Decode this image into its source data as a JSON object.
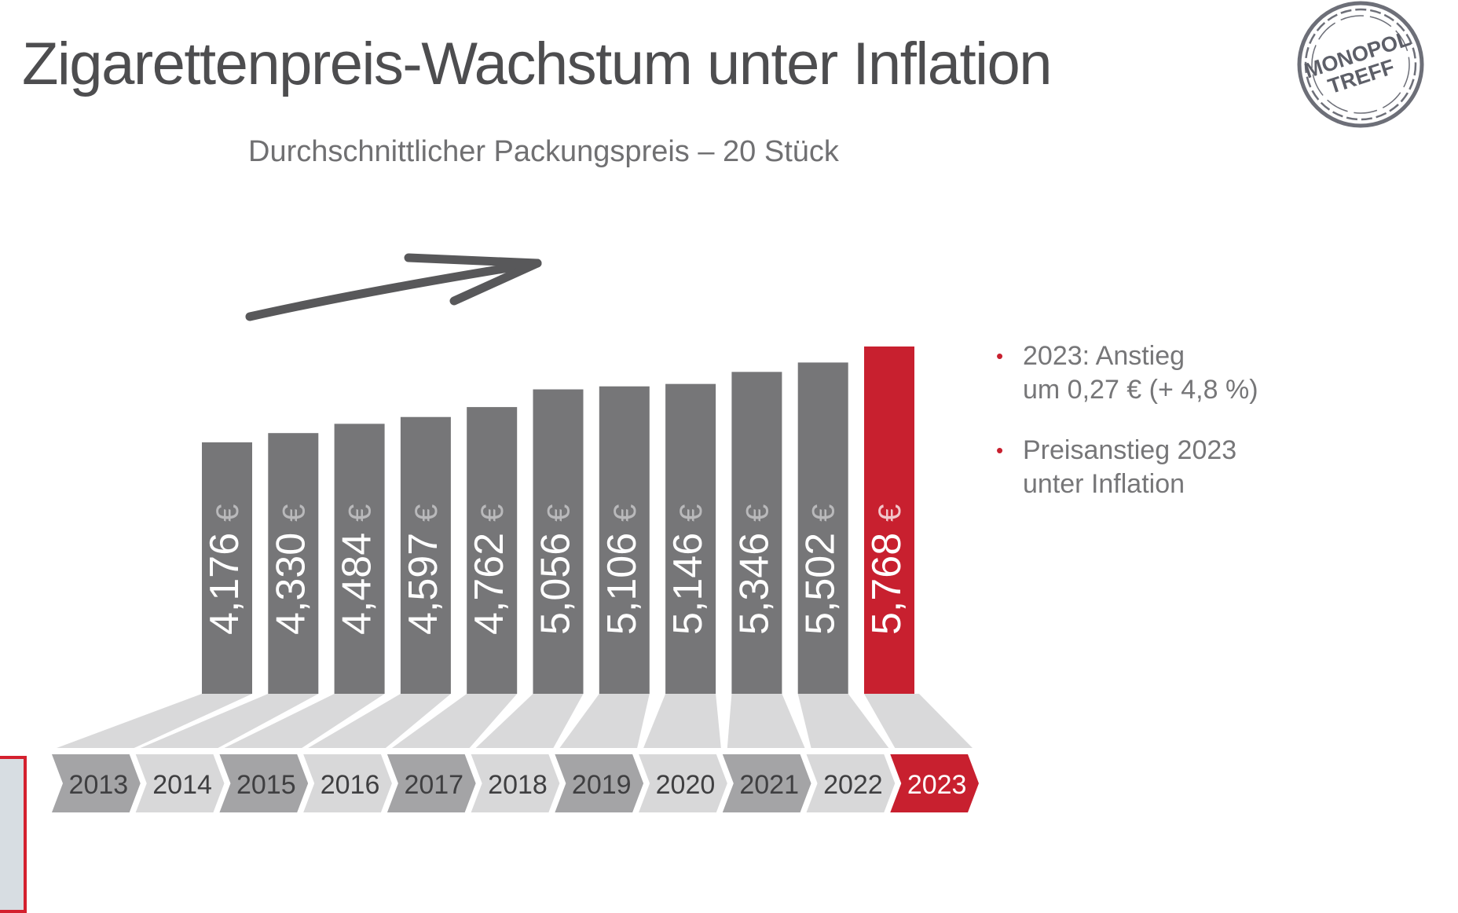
{
  "header": {
    "title": "Zigarettenpreis-Wachstum unter Inflation",
    "subtitle": "Durchschnittlicher Packungspreis – 20 Stück"
  },
  "logo": {
    "line1": "MONOPOL",
    "line2": "TREFF"
  },
  "notes": [
    {
      "line1": "2023: Anstieg",
      "line2": "um 0,27 € (+ 4,8 %)"
    },
    {
      "line1": "Preisanstieg 2023",
      "line2": "unter Inflation"
    }
  ],
  "colors": {
    "bar": "#767678",
    "highlight": "#c8202f",
    "bar_label": "#ffffff",
    "euro_label": "#b9b9bb",
    "floor": "#d9d9da",
    "year_dark": "#a4a4a6",
    "year_light": "#d8d8d9",
    "text": "#4d4d4f"
  },
  "chart_data": {
    "type": "bar",
    "title": "",
    "xlabel": "",
    "ylabel": "",
    "unit": "€",
    "categories": [
      "2013",
      "2014",
      "2015",
      "2016",
      "2017",
      "2018",
      "2019",
      "2020",
      "2021",
      "2022",
      "2023"
    ],
    "values": [
      4.176,
      4.33,
      4.484,
      4.597,
      4.762,
      5.056,
      5.106,
      5.146,
      5.346,
      5.502,
      5.768
    ],
    "value_labels": [
      "4,176",
      "4,330",
      "4,484",
      "4,597",
      "4,762",
      "5,056",
      "5,106",
      "5,146",
      "5,346",
      "5,502",
      "5,768"
    ],
    "highlight_category": "2023",
    "grid": false,
    "legend": "none"
  }
}
